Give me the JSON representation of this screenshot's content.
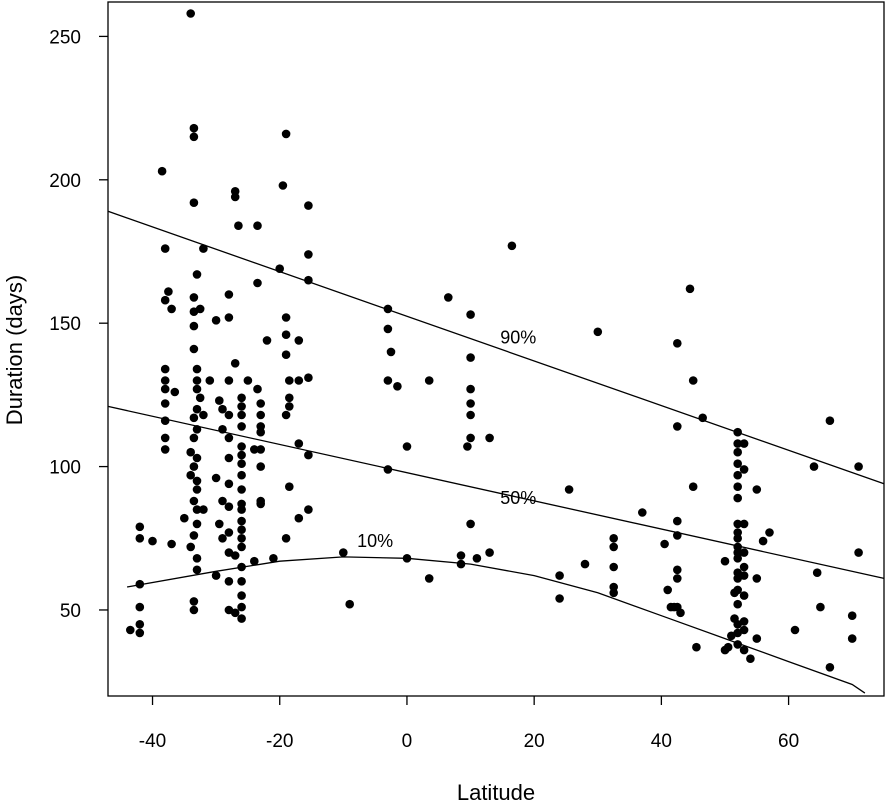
{
  "chart_data": {
    "type": "scatter",
    "xlabel": "Latitude",
    "ylabel": "Duration (days)",
    "xlim": [
      -47,
      75
    ],
    "ylim": [
      20,
      262
    ],
    "xticks": [
      -40,
      -20,
      0,
      20,
      40,
      60
    ],
    "yticks": [
      50,
      100,
      150,
      200,
      250
    ],
    "grid": false,
    "legend": "none",
    "colors": {
      "points": "#000000",
      "lines": "#000000",
      "background": "#ffffff"
    },
    "points": [
      [
        -43.5,
        43
      ],
      [
        -42,
        42
      ],
      [
        -42,
        45
      ],
      [
        -42,
        51
      ],
      [
        -42,
        59
      ],
      [
        -42,
        75
      ],
      [
        -42,
        79
      ],
      [
        -40,
        74
      ],
      [
        -38.5,
        203
      ],
      [
        -38,
        176
      ],
      [
        -37.5,
        161
      ],
      [
        -38,
        158
      ],
      [
        -37,
        155
      ],
      [
        -36.5,
        126
      ],
      [
        -38,
        134
      ],
      [
        -38,
        130
      ],
      [
        -38,
        127
      ],
      [
        -38,
        122
      ],
      [
        -38,
        116
      ],
      [
        -38,
        110
      ],
      [
        -38,
        106
      ],
      [
        -37,
        73
      ],
      [
        -34,
        258
      ],
      [
        -33.5,
        218
      ],
      [
        -33.5,
        215
      ],
      [
        -33.5,
        192
      ],
      [
        -32,
        176
      ],
      [
        -33,
        167
      ],
      [
        -33.5,
        159
      ],
      [
        -32.5,
        155
      ],
      [
        -33.5,
        154
      ],
      [
        -33.5,
        149
      ],
      [
        -33.5,
        141
      ],
      [
        -33,
        134
      ],
      [
        -33,
        130
      ],
      [
        -33,
        127
      ],
      [
        -32.5,
        124
      ],
      [
        -33,
        120
      ],
      [
        -33.5,
        117
      ],
      [
        -33,
        113
      ],
      [
        -33.5,
        110
      ],
      [
        -34,
        105
      ],
      [
        -33,
        103
      ],
      [
        -33.5,
        100
      ],
      [
        -34,
        97
      ],
      [
        -33,
        95
      ],
      [
        -33,
        92
      ],
      [
        -33.5,
        88
      ],
      [
        -33,
        85
      ],
      [
        -33,
        80
      ],
      [
        -33.5,
        76
      ],
      [
        -34,
        72
      ],
      [
        -33,
        68
      ],
      [
        -33,
        64
      ],
      [
        -33.5,
        53
      ],
      [
        -33.5,
        50
      ],
      [
        -35,
        82
      ],
      [
        -32,
        85
      ],
      [
        -32,
        118
      ],
      [
        -31,
        130
      ],
      [
        -30,
        151
      ],
      [
        -29.5,
        123
      ],
      [
        -29,
        120
      ],
      [
        -29,
        113
      ],
      [
        -30,
        96
      ],
      [
        -29,
        88
      ],
      [
        -29.5,
        80
      ],
      [
        -29,
        75
      ],
      [
        -30,
        62
      ],
      [
        -28,
        160
      ],
      [
        -28,
        152
      ],
      [
        -28,
        130
      ],
      [
        -28,
        118
      ],
      [
        -28,
        110
      ],
      [
        -28,
        103
      ],
      [
        -28,
        94
      ],
      [
        -28,
        86
      ],
      [
        -28,
        77
      ],
      [
        -28,
        70
      ],
      [
        -28,
        60
      ],
      [
        -28,
        50
      ],
      [
        -27,
        196
      ],
      [
        -27,
        194
      ],
      [
        -26.5,
        184
      ],
      [
        -27,
        136
      ],
      [
        -26,
        124
      ],
      [
        -26,
        121
      ],
      [
        -26,
        118
      ],
      [
        -26,
        114
      ],
      [
        -26,
        107
      ],
      [
        -26,
        104
      ],
      [
        -26,
        101
      ],
      [
        -26,
        97
      ],
      [
        -26,
        92
      ],
      [
        -26,
        87
      ],
      [
        -26,
        85
      ],
      [
        -26,
        81
      ],
      [
        -26,
        78
      ],
      [
        -26,
        75
      ],
      [
        -26,
        72
      ],
      [
        -27,
        69
      ],
      [
        -26,
        65
      ],
      [
        -26,
        60
      ],
      [
        -26,
        55
      ],
      [
        -26,
        51
      ],
      [
        -27,
        49
      ],
      [
        -26,
        47
      ],
      [
        -25,
        130
      ],
      [
        -24,
        106
      ],
      [
        -23.5,
        184
      ],
      [
        -23.5,
        164
      ],
      [
        -23.5,
        127
      ],
      [
        -23,
        122
      ],
      [
        -23,
        118
      ],
      [
        -23,
        114
      ],
      [
        -23,
        112
      ],
      [
        -23,
        106
      ],
      [
        -23,
        100
      ],
      [
        -23,
        88
      ],
      [
        -23,
        87
      ],
      [
        -24,
        67
      ],
      [
        -22,
        144
      ],
      [
        -21,
        68
      ],
      [
        -19.5,
        198
      ],
      [
        -19,
        216
      ],
      [
        -20,
        169
      ],
      [
        -19,
        152
      ],
      [
        -19,
        146
      ],
      [
        -19,
        139
      ],
      [
        -18.5,
        130
      ],
      [
        -18.5,
        124
      ],
      [
        -18.5,
        121
      ],
      [
        -19,
        118
      ],
      [
        -19,
        75
      ],
      [
        -18.5,
        93
      ],
      [
        -17,
        144
      ],
      [
        -17,
        130
      ],
      [
        -17,
        108
      ],
      [
        -17,
        82
      ],
      [
        -15.5,
        191
      ],
      [
        -15.5,
        174
      ],
      [
        -15.5,
        165
      ],
      [
        -15.5,
        131
      ],
      [
        -15.5,
        104
      ],
      [
        -15.5,
        85
      ],
      [
        -10,
        70
      ],
      [
        -9,
        52
      ],
      [
        -3,
        155
      ],
      [
        -3,
        148
      ],
      [
        -3,
        130
      ],
      [
        -3,
        99
      ],
      [
        -2.5,
        140
      ],
      [
        -1.5,
        128
      ],
      [
        0,
        107
      ],
      [
        0,
        68
      ],
      [
        3.5,
        130
      ],
      [
        3.5,
        61
      ],
      [
        6.5,
        159
      ],
      [
        8.5,
        69
      ],
      [
        8.5,
        66
      ],
      [
        10,
        153
      ],
      [
        10,
        138
      ],
      [
        10,
        127
      ],
      [
        10,
        122
      ],
      [
        10,
        118
      ],
      [
        10,
        110
      ],
      [
        10,
        80
      ],
      [
        9.5,
        107
      ],
      [
        11,
        68
      ],
      [
        13,
        110
      ],
      [
        13,
        70
      ],
      [
        16.5,
        177
      ],
      [
        24,
        62
      ],
      [
        24,
        54
      ],
      [
        25.5,
        92
      ],
      [
        28,
        66
      ],
      [
        30,
        147
      ],
      [
        32.5,
        75
      ],
      [
        32.5,
        72
      ],
      [
        32.5,
        65
      ],
      [
        32.5,
        58
      ],
      [
        32.5,
        56
      ],
      [
        37,
        84
      ],
      [
        40.5,
        73
      ],
      [
        41,
        57
      ],
      [
        41.5,
        51
      ],
      [
        42,
        51
      ],
      [
        42.5,
        143
      ],
      [
        42.5,
        114
      ],
      [
        42.5,
        81
      ],
      [
        42.5,
        76
      ],
      [
        42.5,
        64
      ],
      [
        42.5,
        61
      ],
      [
        42.5,
        51
      ],
      [
        43,
        49
      ],
      [
        44.5,
        162
      ],
      [
        45,
        130
      ],
      [
        45,
        93
      ],
      [
        45.5,
        37
      ],
      [
        46.5,
        117
      ],
      [
        50,
        67
      ],
      [
        50,
        36
      ],
      [
        50.5,
        37
      ],
      [
        51,
        41
      ],
      [
        51.5,
        47
      ],
      [
        51.5,
        56
      ],
      [
        52,
        112
      ],
      [
        52,
        108
      ],
      [
        52,
        105
      ],
      [
        52,
        101
      ],
      [
        52,
        97
      ],
      [
        52,
        93
      ],
      [
        52,
        89
      ],
      [
        52,
        80
      ],
      [
        52,
        77
      ],
      [
        52,
        75
      ],
      [
        52,
        72
      ],
      [
        52,
        70
      ],
      [
        52,
        68
      ],
      [
        52,
        63
      ],
      [
        52,
        61
      ],
      [
        52,
        57
      ],
      [
        52,
        52
      ],
      [
        52,
        45
      ],
      [
        52,
        42
      ],
      [
        52,
        38
      ],
      [
        53,
        108
      ],
      [
        53,
        99
      ],
      [
        53,
        80
      ],
      [
        53,
        70
      ],
      [
        53,
        65
      ],
      [
        53,
        62
      ],
      [
        53,
        55
      ],
      [
        53,
        46
      ],
      [
        53,
        43
      ],
      [
        53,
        36
      ],
      [
        54,
        33
      ],
      [
        55,
        92
      ],
      [
        55,
        61
      ],
      [
        55,
        40
      ],
      [
        56,
        74
      ],
      [
        57,
        77
      ],
      [
        61,
        43
      ],
      [
        64,
        100
      ],
      [
        64.5,
        63
      ],
      [
        65,
        51
      ],
      [
        66.5,
        116
      ],
      [
        66.5,
        30
      ],
      [
        70,
        48
      ],
      [
        70,
        40
      ],
      [
        71,
        100
      ],
      [
        71,
        70
      ]
    ],
    "quantile_lines": [
      {
        "label": "90%",
        "label_x": 17.5,
        "label_y": 145,
        "x": [
          -47,
          75
        ],
        "y": [
          189,
          94
        ]
      },
      {
        "label": "50%",
        "label_x": 17.5,
        "label_y": 89,
        "x": [
          -47,
          75
        ],
        "y": [
          121,
          61
        ]
      },
      {
        "label": "10%",
        "label_x": -5,
        "label_y": 74,
        "x": [
          -44,
          -30,
          -20,
          -10,
          0,
          10,
          20,
          30,
          40,
          50,
          60,
          70,
          72
        ],
        "y": [
          58,
          63.5,
          67,
          68.5,
          68,
          66,
          62,
          56,
          48,
          40,
          32,
          24,
          21
        ]
      }
    ]
  }
}
